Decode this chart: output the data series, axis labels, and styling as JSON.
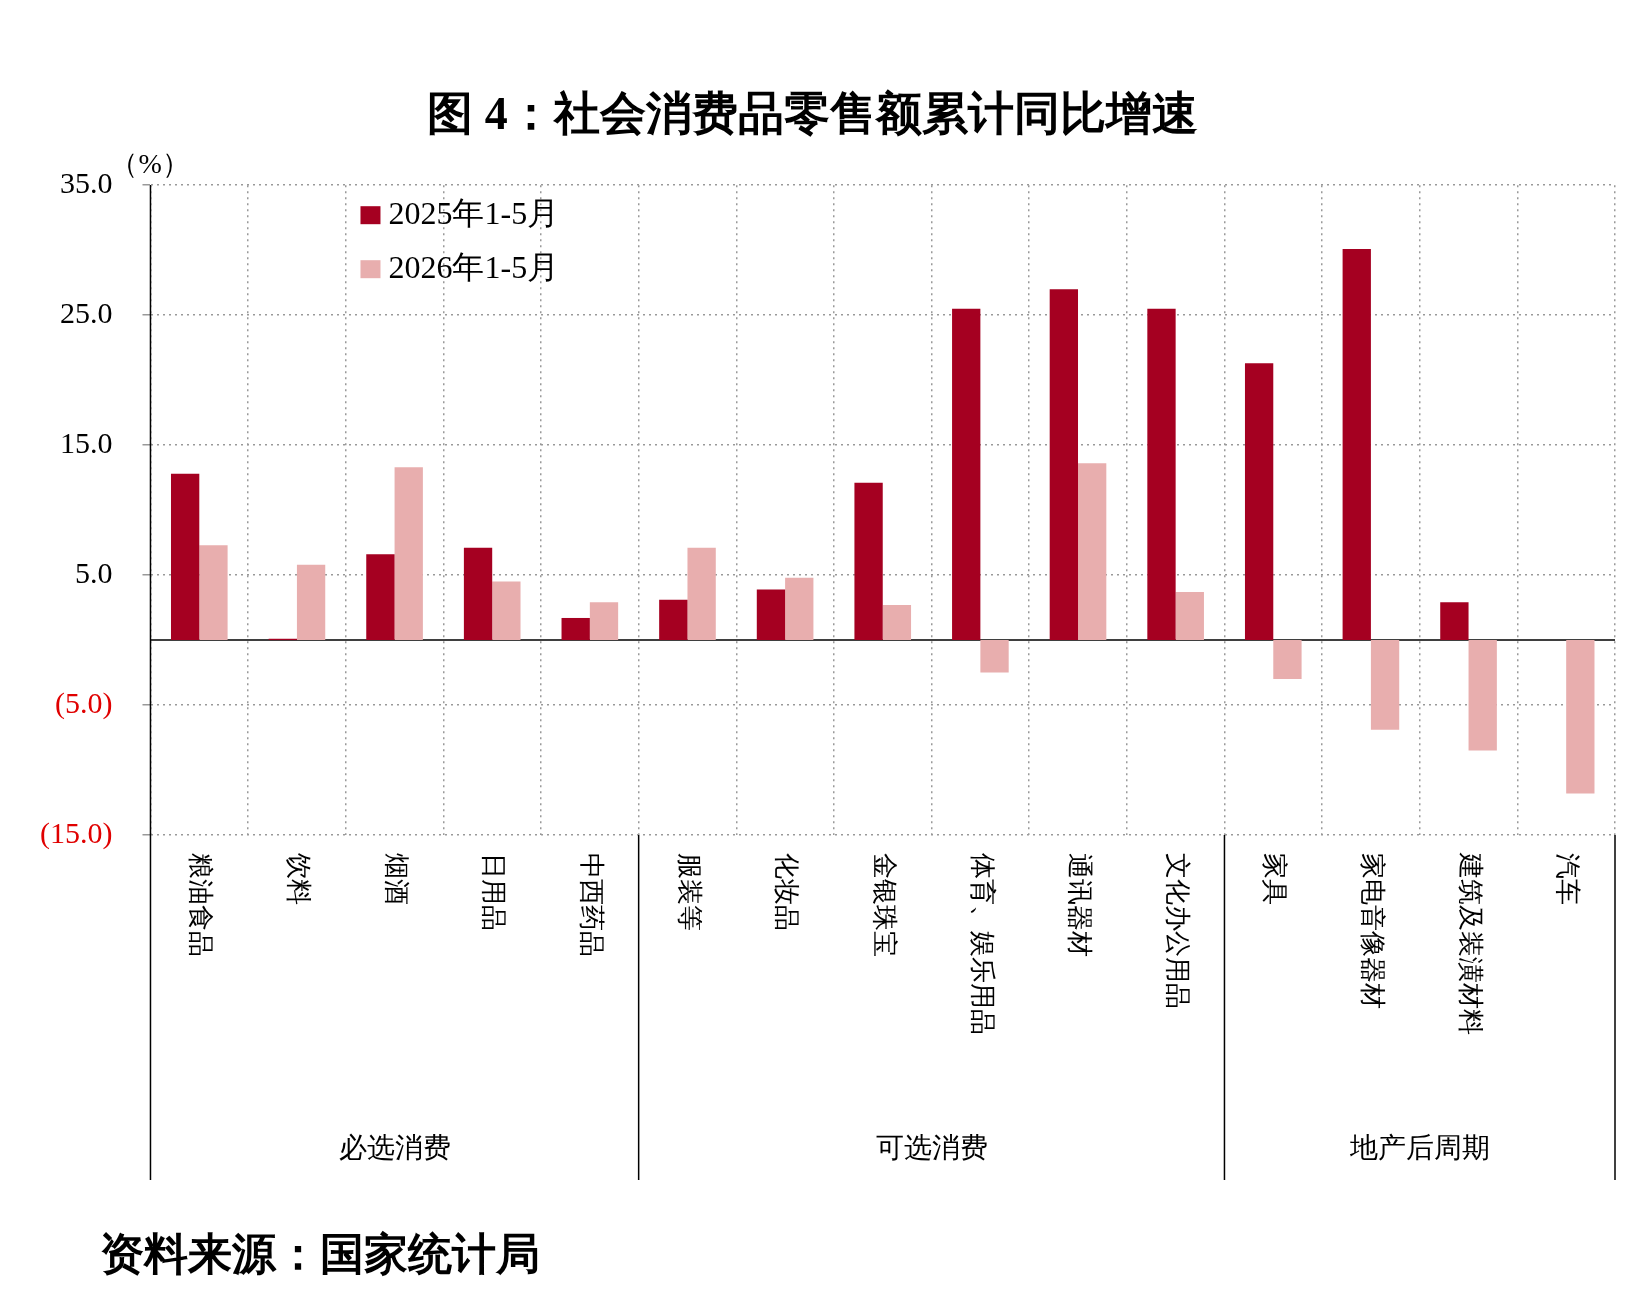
{
  "chart_data": {
    "type": "bar",
    "title": "图 4：社会消费品零售额累计同比增速",
    "ylabel": "（%）",
    "categories": [
      "粮油食品",
      "饮料",
      "烟酒",
      "日用品",
      "中西药品",
      "服装等",
      "化妆品",
      "金银珠宝",
      "体育、娱乐用品",
      "通讯器材",
      "文化办公用品",
      "家具",
      "家电音像器材",
      "建筑及装潢材料",
      "汽车"
    ],
    "series": [
      {
        "name": "2025年1-5月",
        "color": "#a50021",
        "values": [
          12.8,
          0.1,
          6.6,
          7.1,
          1.7,
          3.1,
          3.9,
          12.1,
          25.5,
          27.0,
          25.5,
          21.3,
          30.1,
          2.9,
          null
        ]
      },
      {
        "name": "2026年1-5月",
        "color": "#e8aeae",
        "values": [
          7.3,
          5.8,
          13.3,
          4.5,
          2.9,
          7.1,
          4.8,
          2.7,
          -2.5,
          13.6,
          3.7,
          -3.0,
          -6.9,
          -8.5,
          -11.8
        ]
      }
    ],
    "ylim": [
      -15,
      35
    ],
    "yticks": [
      {
        "value": 35,
        "label": "35.0"
      },
      {
        "value": 25,
        "label": "25.0"
      },
      {
        "value": 15,
        "label": "15.0"
      },
      {
        "value": 5,
        "label": "5.0"
      },
      {
        "value": -5,
        "label": "(5.0)"
      },
      {
        "value": -15,
        "label": "(15.0)"
      }
    ],
    "grid": true,
    "legend": "top left",
    "annotations": [
      "必选消费",
      "可选消费",
      "地产后周期",
      "资料来源：国家统计局"
    ]
  }
}
